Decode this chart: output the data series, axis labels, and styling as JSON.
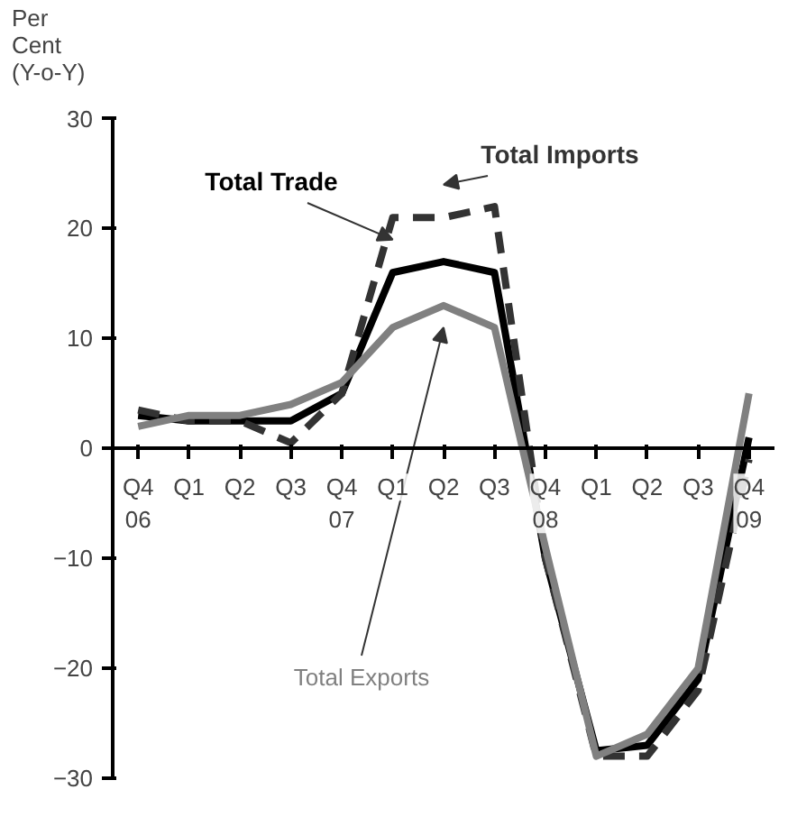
{
  "chart_data": {
    "type": "line",
    "ylabel": "Per\nCent\n(Y-o-Y)",
    "categories": [
      "Q4\n06",
      "Q1",
      "Q2",
      "Q3",
      "Q4\n07",
      "Q1",
      "Q2",
      "Q3",
      "Q4\n08",
      "Q1",
      "Q2",
      "Q3",
      "Q4\n09"
    ],
    "ylim": [
      -30,
      30
    ],
    "yticks": [
      -30,
      -20,
      -10,
      0,
      10,
      20,
      30
    ],
    "grid": false,
    "series": [
      {
        "name": "Total Trade",
        "color": "#000000",
        "line_style": "solid",
        "values": [
          3,
          2.5,
          2.5,
          2.5,
          5,
          16,
          17,
          16,
          -10,
          -27.5,
          -27,
          -21,
          1
        ]
      },
      {
        "name": "Total Imports",
        "color": "#333333",
        "line_style": "dashed",
        "values": [
          3.5,
          2.5,
          2.5,
          0.5,
          5,
          21,
          21,
          22,
          -10,
          -28,
          -28,
          -22,
          -1
        ]
      },
      {
        "name": "Total Exports",
        "color": "#808080",
        "line_style": "solid",
        "values": [
          2,
          3,
          3,
          4,
          6,
          11,
          13,
          11,
          -9,
          -28,
          -26,
          -20,
          5
        ]
      }
    ]
  }
}
